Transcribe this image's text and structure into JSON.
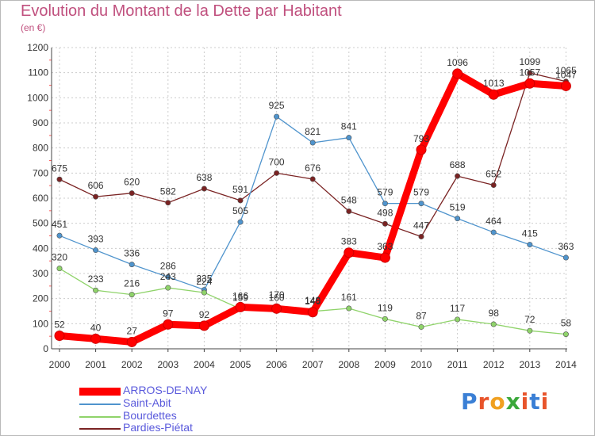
{
  "title": "Evolution du Montant de la Dette par Habitant",
  "unit": "(en €)",
  "logo": "Proxiti",
  "chart_data": {
    "type": "line",
    "title": "Evolution du Montant de la Dette par Habitant",
    "ylabel": "(en €)",
    "xlabel": "",
    "x": [
      "2000",
      "2001",
      "2002",
      "2003",
      "2004",
      "2005",
      "2006",
      "2007",
      "2008",
      "2009",
      "2010",
      "2011",
      "2012",
      "2013",
      "2014"
    ],
    "ylim": [
      0,
      1200
    ],
    "yticks": [
      0,
      100,
      200,
      300,
      400,
      500,
      600,
      700,
      800,
      900,
      1000,
      1100,
      1200
    ],
    "grid": true,
    "legend": "bottom-left",
    "series": [
      {
        "name": "ARROS-DE-NAY",
        "color": "#ff0000",
        "values": [
          52,
          40,
          27,
          97,
          92,
          166,
          160,
          146,
          383,
          363,
          793,
          1096,
          1013,
          1057,
          1047
        ]
      },
      {
        "name": "Saint-Abit",
        "color": "#4f94cd",
        "values": [
          451,
          393,
          336,
          286,
          235,
          505,
          925,
          821,
          841,
          579,
          579,
          519,
          464,
          415,
          363
        ]
      },
      {
        "name": "Bourdettes",
        "color": "#8fd36a",
        "values": [
          320,
          233,
          216,
          243,
          224,
          159,
          170,
          149,
          161,
          119,
          87,
          117,
          98,
          72,
          58
        ]
      },
      {
        "name": "Pardies-Piétat",
        "color": "#7a2323",
        "values": [
          675,
          606,
          620,
          582,
          638,
          591,
          700,
          676,
          548,
          498,
          447,
          688,
          652,
          1099,
          1065
        ]
      }
    ]
  }
}
